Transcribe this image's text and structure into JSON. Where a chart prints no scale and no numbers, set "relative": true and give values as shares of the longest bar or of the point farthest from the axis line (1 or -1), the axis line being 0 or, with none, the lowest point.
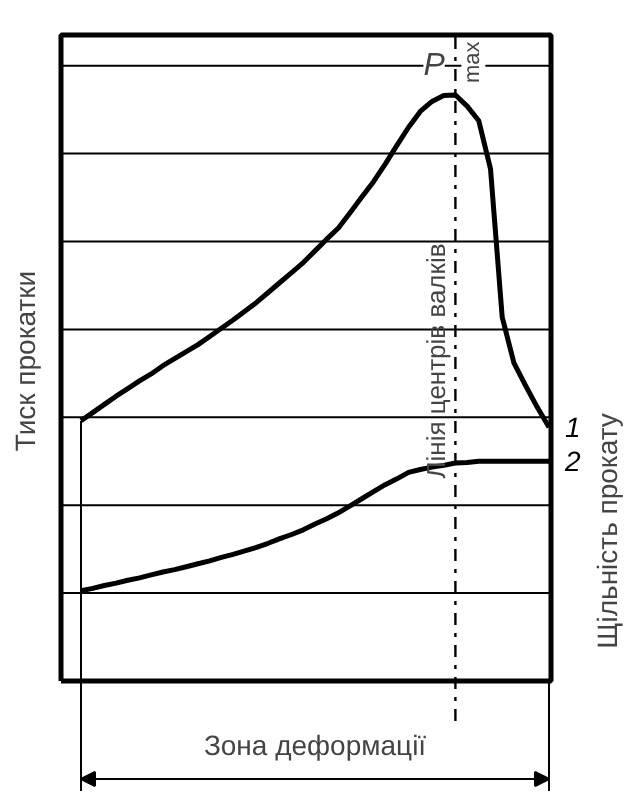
{
  "chart_data": {
    "type": "line",
    "relative": true,
    "xlabel": "Зона деформації",
    "ylabel": "Тиск прокатки",
    "y2label": "Щільність прокату",
    "grid": "y",
    "tick_labels": false,
    "legend": false,
    "marker": "none",
    "line_style": "solid",
    "categories": [
      null,
      null,
      null,
      null,
      null,
      null,
      null,
      null,
      null,
      null,
      null,
      null,
      null,
      null,
      null,
      null,
      null,
      null,
      null,
      null,
      null,
      null,
      null,
      null,
      null,
      null,
      null,
      null,
      null,
      null,
      null,
      null,
      null,
      null,
      null,
      null,
      null,
      null,
      null,
      null,
      null
    ],
    "series": [
      {
        "name": "1",
        "color": "#000000",
        "values": [
          0.444,
          0.458,
          0.472,
          0.486,
          0.499,
          0.512,
          0.524,
          0.538,
          0.55,
          0.562,
          0.574,
          0.588,
          0.602,
          0.616,
          0.631,
          0.646,
          0.663,
          0.68,
          0.697,
          0.714,
          0.734,
          0.754,
          0.773,
          0.799,
          0.826,
          0.852,
          0.882,
          0.914,
          0.945,
          0.972,
          0.989,
          0.999,
          1,
          0.981,
          0.956,
          0.874,
          0.621,
          0.543,
          0.504,
          0.467,
          0.433
        ]
      },
      {
        "name": "2",
        "color": "#000000",
        "values": [
          0.154,
          0.158,
          0.163,
          0.167,
          0.172,
          0.176,
          0.181,
          0.186,
          0.19,
          0.195,
          0.2,
          0.205,
          0.211,
          0.216,
          0.222,
          0.228,
          0.235,
          0.243,
          0.25,
          0.258,
          0.268,
          0.277,
          0.287,
          0.299,
          0.311,
          0.323,
          0.335,
          0.345,
          0.356,
          0.361,
          0.365,
          0.368,
          0.372,
          0.373,
          0.375,
          0.375,
          0.375,
          0.375,
          0.375,
          0.375,
          0.375
        ]
      }
    ],
    "annotations": [
      "P$_{max}$",
      "Лінія центрів валків"
    ]
  }
}
